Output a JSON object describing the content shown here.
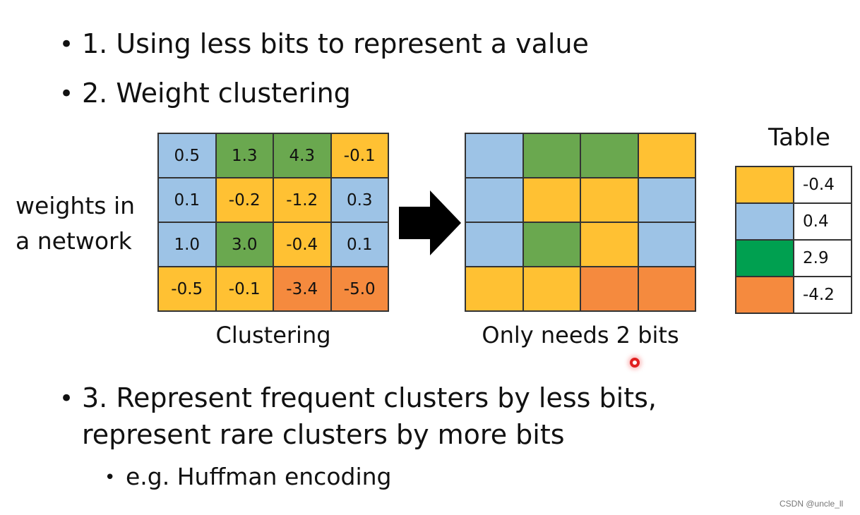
{
  "bullets": [
    {
      "text": "1. Using less bits to represent a value"
    },
    {
      "text": "2. Weight clustering"
    },
    {
      "line1": "3. Represent frequent clusters by less bits,",
      "line2": "represent rare clusters by more bits"
    }
  ],
  "sub_bullet": "e.g. Huffman encoding",
  "side_label": {
    "line1": "weights in",
    "line2": "a network"
  },
  "colors": {
    "blue": "#9DC3E6",
    "green": "#6AA84F",
    "yellow": "#FFC133",
    "orange": "#F58A3E",
    "table_green": "#00A050"
  },
  "weights_grid": [
    [
      {
        "value": "0.5",
        "color": "blue"
      },
      {
        "value": "1.3",
        "color": "green"
      },
      {
        "value": "4.3",
        "color": "green"
      },
      {
        "value": "-0.1",
        "color": "yellow"
      }
    ],
    [
      {
        "value": "0.1",
        "color": "blue"
      },
      {
        "value": "-0.2",
        "color": "yellow"
      },
      {
        "value": "-1.2",
        "color": "yellow"
      },
      {
        "value": "0.3",
        "color": "blue"
      }
    ],
    [
      {
        "value": "1.0",
        "color": "blue"
      },
      {
        "value": "3.0",
        "color": "green"
      },
      {
        "value": "-0.4",
        "color": "yellow"
      },
      {
        "value": "0.1",
        "color": "blue"
      }
    ],
    [
      {
        "value": "-0.5",
        "color": "yellow"
      },
      {
        "value": "-0.1",
        "color": "yellow"
      },
      {
        "value": "-3.4",
        "color": "orange"
      },
      {
        "value": "-5.0",
        "color": "orange"
      }
    ]
  ],
  "clustered_grid": [
    [
      "blue",
      "green",
      "green",
      "yellow"
    ],
    [
      "blue",
      "yellow",
      "yellow",
      "blue"
    ],
    [
      "blue",
      "green",
      "yellow",
      "blue"
    ],
    [
      "yellow",
      "yellow",
      "orange",
      "orange"
    ]
  ],
  "captions": {
    "left": "Clustering",
    "right": "Only needs 2 bits"
  },
  "table": {
    "title": "Table",
    "rows": [
      {
        "color": "yellow",
        "value": "-0.4"
      },
      {
        "color": "blue",
        "value": "0.4"
      },
      {
        "color": "table_green",
        "value": "2.9"
      },
      {
        "color": "orange",
        "value": "-4.2"
      }
    ]
  },
  "watermark": "CSDN @uncle_ll"
}
